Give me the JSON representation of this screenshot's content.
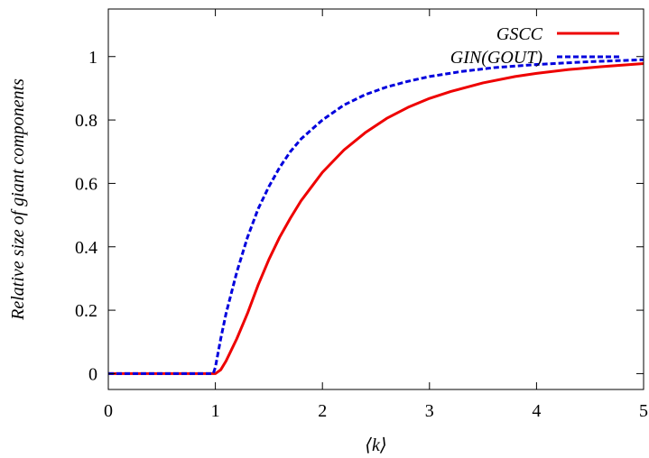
{
  "chart_data": {
    "type": "line",
    "title": "",
    "xlabel": "⟨k⟩",
    "ylabel": "Relative size of giant components",
    "xlim": [
      0,
      5
    ],
    "ylim": [
      -0.05,
      1.15
    ],
    "xticks": [
      "0",
      "1",
      "2",
      "3",
      "4",
      "5"
    ],
    "yticks": [
      "0",
      "0.2",
      "0.4",
      "0.6",
      "0.8",
      "1"
    ],
    "grid": false,
    "legend": "top-right",
    "series": [
      {
        "name": "GSCC",
        "color": "#ee0000",
        "dash": "solid",
        "x": [
          0,
          0.5,
          1.0,
          1.05,
          1.1,
          1.2,
          1.3,
          1.4,
          1.5,
          1.6,
          1.7,
          1.8,
          1.9,
          2.0,
          2.2,
          2.4,
          2.6,
          2.8,
          3.0,
          3.2,
          3.5,
          3.8,
          4.0,
          4.3,
          4.6,
          5.0
        ],
        "values": [
          0,
          0,
          0,
          0.012,
          0.04,
          0.11,
          0.19,
          0.28,
          0.36,
          0.43,
          0.49,
          0.545,
          0.59,
          0.635,
          0.705,
          0.76,
          0.805,
          0.84,
          0.868,
          0.89,
          0.917,
          0.937,
          0.947,
          0.959,
          0.968,
          0.978
        ]
      },
      {
        "name": "GIN(GOUT)",
        "color": "#0000dd",
        "dash": "dashed",
        "x": [
          0,
          0.5,
          0.98,
          1.0,
          1.05,
          1.1,
          1.2,
          1.3,
          1.4,
          1.5,
          1.6,
          1.7,
          1.8,
          1.9,
          2.0,
          2.2,
          2.4,
          2.6,
          2.8,
          3.0,
          3.3,
          3.6,
          4.0,
          4.5,
          5.0
        ],
        "values": [
          0,
          0,
          0,
          0.02,
          0.11,
          0.19,
          0.32,
          0.43,
          0.52,
          0.59,
          0.65,
          0.7,
          0.74,
          0.77,
          0.8,
          0.847,
          0.88,
          0.904,
          0.922,
          0.937,
          0.953,
          0.965,
          0.975,
          0.984,
          0.99
        ]
      }
    ]
  }
}
